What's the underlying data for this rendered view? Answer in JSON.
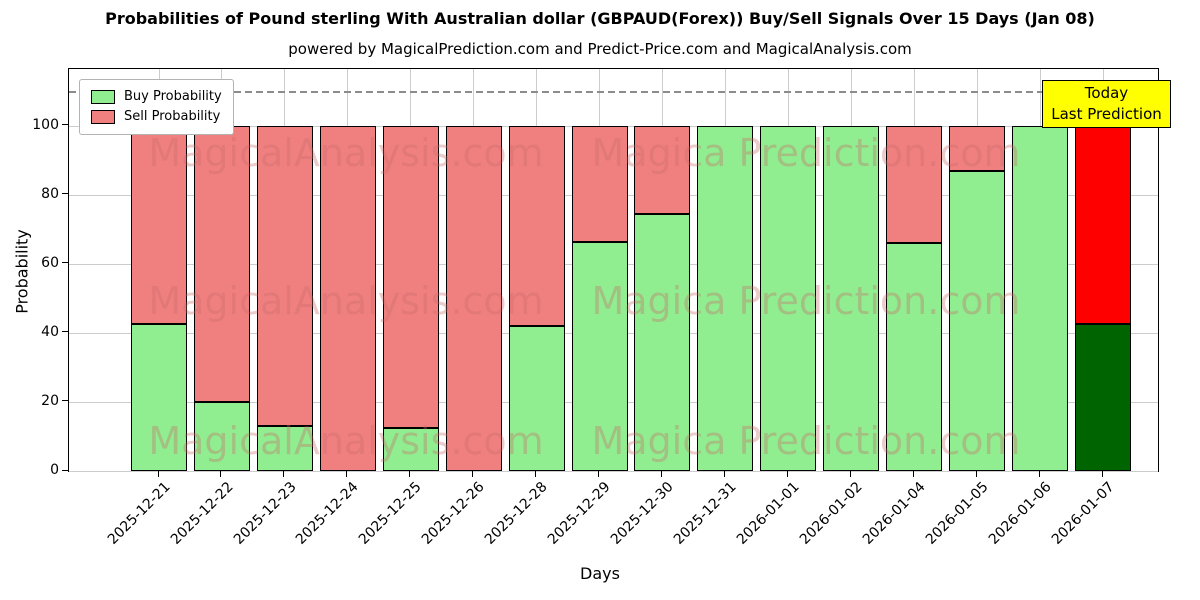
{
  "title": "Probabilities of Pound sterling With Australian dollar (GBPAUD(Forex)) Buy/Sell Signals Over 15 Days (Jan 08)",
  "subtitle": "powered by MagicalPrediction.com and Predict-Price.com and MagicalAnalysis.com",
  "legend": [
    {
      "label": "Buy Probability",
      "color": "#90EE90"
    },
    {
      "label": "Sell Probability",
      "color": "#F08080"
    }
  ],
  "annotation": {
    "line1": "Today",
    "line2": "Last Prediction",
    "bg": "#FFFF00"
  },
  "watermarks": [
    "MagicalAnalysis.com",
    "Magica Prediction.com"
  ],
  "chart_data": {
    "type": "bar",
    "stacked": true,
    "title": "Probabilities of Pound sterling With Australian dollar (GBPAUD(Forex)) Buy/Sell Signals Over 15 Days (Jan 08)",
    "xlabel": "Days",
    "ylabel": "Probability",
    "categories": [
      "2025-12-21",
      "2025-12-22",
      "2025-12-23",
      "2025-12-24",
      "2025-12-25",
      "2025-12-26",
      "2025-12-28",
      "2025-12-29",
      "2025-12-30",
      "2025-12-31",
      "2026-01-01",
      "2026-01-02",
      "2026-01-04",
      "2026-01-05",
      "2026-01-06",
      "2026-01-07"
    ],
    "series": [
      {
        "name": "Buy Probability",
        "color": "#90EE90",
        "values": [
          42.5,
          20,
          13,
          0,
          12.5,
          0,
          42,
          66.5,
          74.5,
          100,
          100,
          100,
          66,
          87,
          100,
          42.5
        ]
      },
      {
        "name": "Sell Probability",
        "color": "#F08080",
        "values": [
          57.5,
          80,
          87,
          100,
          87.5,
          100,
          58,
          33.5,
          25.5,
          0,
          0,
          0,
          34,
          13,
          0,
          57.5
        ]
      }
    ],
    "today_colors": {
      "buy": "#006400",
      "sell": "#FF0000"
    },
    "yticks": [
      0,
      20,
      40,
      60,
      80,
      100
    ],
    "ylim": [
      0,
      116.5
    ],
    "dashed_line_y": 110,
    "grid": true,
    "legend_position": "upper left"
  }
}
